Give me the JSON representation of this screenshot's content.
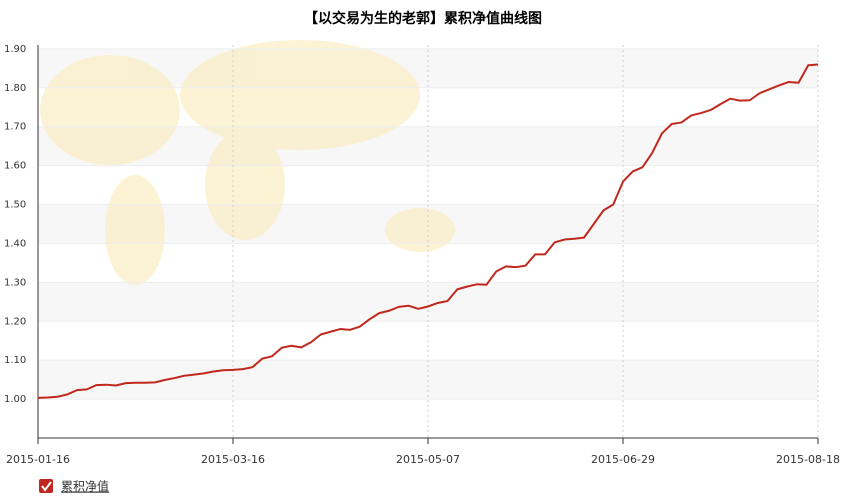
{
  "chart_data": {
    "type": "line",
    "title": "【以交易为生的老郭】累积净值曲线图",
    "categories": [
      "2015-01-16",
      null,
      null,
      null,
      null,
      null,
      null,
      null,
      null,
      null,
      null,
      null,
      null,
      null,
      null,
      null,
      null,
      null,
      null,
      null,
      "2015-03-16",
      null,
      null,
      null,
      null,
      null,
      null,
      null,
      null,
      null,
      null,
      null,
      null,
      null,
      null,
      null,
      null,
      null,
      null,
      null,
      "2015-05-07",
      null,
      null,
      null,
      null,
      null,
      null,
      null,
      null,
      null,
      null,
      null,
      null,
      null,
      null,
      null,
      null,
      null,
      null,
      null,
      "2015-06-29",
      null,
      null,
      null,
      null,
      null,
      null,
      null,
      null,
      null,
      null,
      null,
      null,
      null,
      null,
      null,
      null,
      null,
      null,
      null,
      "2015-08-18"
    ],
    "series": [
      {
        "name": "累积净值",
        "color": "#c0281e",
        "values": [
          1.003,
          1.004,
          1.006,
          1.012,
          1.023,
          1.025,
          1.036,
          1.037,
          1.035,
          1.041,
          1.042,
          1.042,
          1.043,
          1.049,
          1.054,
          1.06,
          1.063,
          1.066,
          1.071,
          1.074,
          1.075,
          1.077,
          1.082,
          1.104,
          1.11,
          1.132,
          1.137,
          1.133,
          1.146,
          1.166,
          1.173,
          1.18,
          1.178,
          1.186,
          1.205,
          1.221,
          1.227,
          1.237,
          1.24,
          1.232,
          1.238,
          1.247,
          1.252,
          1.282,
          1.289,
          1.295,
          1.294,
          1.328,
          1.341,
          1.339,
          1.343,
          1.372,
          1.372,
          1.403,
          1.41,
          1.412,
          1.415,
          1.45,
          1.485,
          1.5,
          1.559,
          1.585,
          1.596,
          1.633,
          1.683,
          1.707,
          1.711,
          1.729,
          1.735,
          1.743,
          1.758,
          1.772,
          1.767,
          1.768,
          1.786,
          1.796,
          1.806,
          1.815,
          1.813,
          1.858,
          1.86
        ]
      }
    ],
    "ylim": [
      0.9,
      1.91
    ],
    "yticks": [
      {
        "value": 1.0,
        "label": "1.00"
      },
      {
        "value": 1.1,
        "label": "1.10"
      },
      {
        "value": 1.2,
        "label": "1.20"
      },
      {
        "value": 1.3,
        "label": "1.30"
      },
      {
        "value": 1.4,
        "label": "1.40"
      },
      {
        "value": 1.5,
        "label": "1.50"
      },
      {
        "value": 1.6,
        "label": "1.60"
      },
      {
        "value": 1.7,
        "label": "1.70"
      },
      {
        "value": 1.8,
        "label": "1.80"
      },
      {
        "value": 1.9,
        "label": "1.90"
      }
    ],
    "grid": true
  }
}
